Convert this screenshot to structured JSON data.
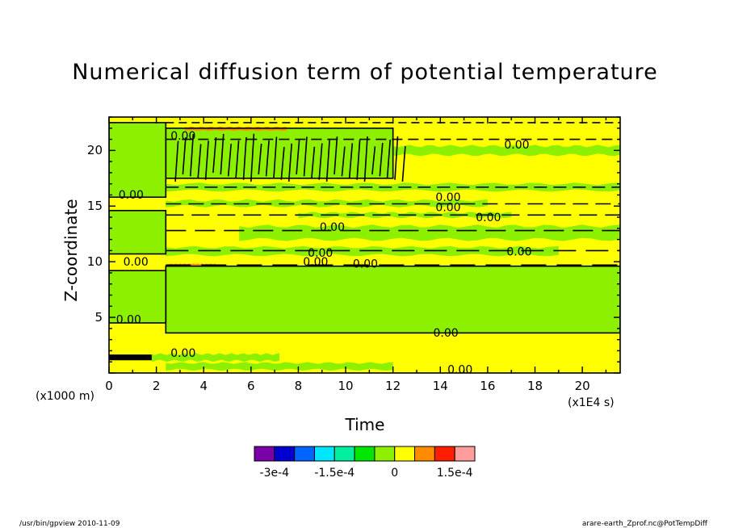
{
  "title": "Numerical diffusion term of potential temperature",
  "footer": {
    "left": "/usr/bin/gpview 2010-11-09",
    "right": "arare-earth_Zprof.nc@PotTempDiff"
  },
  "chart_data": {
    "type": "heatmap",
    "title": "Numerical diffusion term of potential temperature",
    "xlabel": "Time",
    "ylabel": "Z-coordinate",
    "x_unit": "(x1E4 s)",
    "y_unit": "(x1000 m)",
    "xlim": [
      0,
      21.6
    ],
    "ylim": [
      0,
      23
    ],
    "x_ticks": [
      "0",
      "2",
      "4",
      "6",
      "8",
      "10",
      "12",
      "14",
      "16",
      "18",
      "20"
    ],
    "y_ticks": [
      "5",
      "10",
      "15",
      "20"
    ],
    "contour_label": "0.00",
    "colorbar": {
      "colors": [
        "#7a00aa",
        "#0000d0",
        "#0064ff",
        "#00e6ff",
        "#00f0a0",
        "#00e600",
        "#8cf000",
        "#ffff00",
        "#ff8c00",
        "#ff1e00",
        "#ff9c9c"
      ],
      "tick_labels": [
        "-3e-4",
        "-1.5e-4",
        "0",
        "1.5e-4"
      ]
    },
    "regions": [
      {
        "x": [
          0,
          21.6
        ],
        "y": [
          0,
          23
        ],
        "level": "0 to 5e-5",
        "color": "#ffff00"
      },
      {
        "x": [
          2.4,
          21.6
        ],
        "y": [
          3.6,
          9.6
        ],
        "level": "-5e-5 to 0",
        "color": "#8cf000"
      },
      {
        "x": [
          0,
          2.4
        ],
        "y": [
          4.5,
          9.2
        ],
        "level": "-5e-5 to 0",
        "color": "#8cf000"
      },
      {
        "x": [
          0,
          2.4
        ],
        "y": [
          10.7,
          14.6
        ],
        "level": "-5e-5 to 0",
        "color": "#8cf000"
      },
      {
        "x": [
          0,
          2.4
        ],
        "y": [
          15.8,
          22.5
        ],
        "level": "-5e-5 to 0",
        "color": "#8cf000"
      },
      {
        "x": [
          2.4,
          12
        ],
        "y": [
          17.5,
          22
        ],
        "level": "-5e-5 to 0",
        "color": "#8cf000"
      },
      {
        "x": [
          0,
          1.8
        ],
        "y": [
          1.2,
          1.6
        ],
        "level": "oscillating",
        "color": "#000000"
      }
    ]
  }
}
